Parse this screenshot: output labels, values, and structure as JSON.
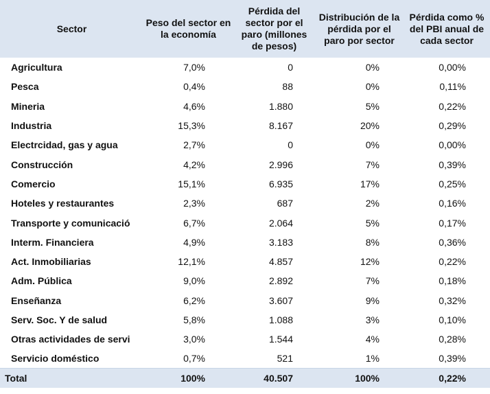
{
  "headers": {
    "sector": "Sector",
    "peso": "Peso del sector en la economía",
    "perdida": "Pérdida del sector por el paro (millones de pesos)",
    "distribucion": "Distribución de la pérdida por el paro por sector",
    "pct_pbi": "Pérdida como % del PBI anual de cada sector"
  },
  "rows": [
    {
      "sector": "Agricultura",
      "peso": "7,0%",
      "perdida": "0",
      "distribucion": "0%",
      "pct_pbi": "0,00%"
    },
    {
      "sector": "Pesca",
      "peso": "0,4%",
      "perdida": "88",
      "distribucion": "0%",
      "pct_pbi": "0,11%"
    },
    {
      "sector": "Mineria",
      "peso": "4,6%",
      "perdida": "1.880",
      "distribucion": "5%",
      "pct_pbi": "0,22%"
    },
    {
      "sector": "Industria",
      "peso": "15,3%",
      "perdida": "8.167",
      "distribucion": "20%",
      "pct_pbi": "0,29%"
    },
    {
      "sector": "Electrcidad, gas y agua",
      "peso": "2,7%",
      "perdida": "0",
      "distribucion": "0%",
      "pct_pbi": "0,00%"
    },
    {
      "sector": "Construcción",
      "peso": "4,2%",
      "perdida": "2.996",
      "distribucion": "7%",
      "pct_pbi": "0,39%"
    },
    {
      "sector": "Comercio",
      "peso": "15,1%",
      "perdida": "6.935",
      "distribucion": "17%",
      "pct_pbi": "0,25%"
    },
    {
      "sector": "Hoteles y restaurantes",
      "peso": "2,3%",
      "perdida": "687",
      "distribucion": "2%",
      "pct_pbi": "0,16%"
    },
    {
      "sector": "Transporte y comunicació",
      "peso": "6,7%",
      "perdida": "2.064",
      "distribucion": "5%",
      "pct_pbi": "0,17%"
    },
    {
      "sector": "Interm. Financiera",
      "peso": "4,9%",
      "perdida": "3.183",
      "distribucion": "8%",
      "pct_pbi": "0,36%"
    },
    {
      "sector": "Act. Inmobiliarias",
      "peso": "12,1%",
      "perdida": "4.857",
      "distribucion": "12%",
      "pct_pbi": "0,22%"
    },
    {
      "sector": "Adm. Pública",
      "peso": "9,0%",
      "perdida": "2.892",
      "distribucion": "7%",
      "pct_pbi": "0,18%"
    },
    {
      "sector": "Enseñanza",
      "peso": "6,2%",
      "perdida": "3.607",
      "distribucion": "9%",
      "pct_pbi": "0,32%"
    },
    {
      "sector": "Serv. Soc. Y de salud",
      "peso": "5,8%",
      "perdida": "1.088",
      "distribucion": "3%",
      "pct_pbi": "0,10%"
    },
    {
      "sector": "Otras actividades de servi",
      "peso": "3,0%",
      "perdida": "1.544",
      "distribucion": "4%",
      "pct_pbi": "0,28%"
    },
    {
      "sector": "Servicio doméstico",
      "peso": "0,7%",
      "perdida": "521",
      "distribucion": "1%",
      "pct_pbi": "0,39%"
    }
  ],
  "total": {
    "label": "Total",
    "peso": "100%",
    "perdida": "40.507",
    "distribucion": "100%",
    "pct_pbi": "0,22%"
  },
  "colors": {
    "header_bg": "#dce5f1",
    "total_bg": "#dce5f1",
    "text": "#111111"
  }
}
